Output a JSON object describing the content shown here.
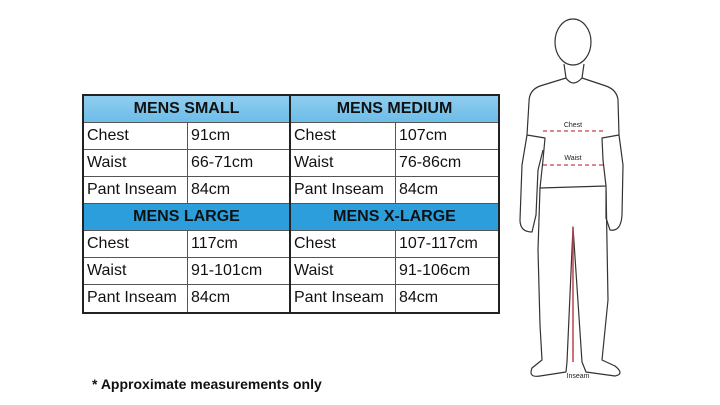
{
  "tables": [
    {
      "title": "MENS SMALL",
      "style": "light",
      "rows": [
        [
          "Chest",
          "91cm"
        ],
        [
          "Waist",
          "66-71cm"
        ],
        [
          "Pant Inseam",
          "84cm"
        ]
      ]
    },
    {
      "title": "MENS MEDIUM",
      "style": "light",
      "rows": [
        [
          "Chest",
          "107cm"
        ],
        [
          "Waist",
          "76-86cm"
        ],
        [
          "Pant Inseam",
          "84cm"
        ]
      ]
    },
    {
      "title": "MENS LARGE",
      "style": "dark",
      "rows": [
        [
          "Chest",
          "117cm"
        ],
        [
          "Waist",
          "91-101cm"
        ],
        [
          "Pant Inseam",
          "84cm"
        ]
      ]
    },
    {
      "title": "MENS X-LARGE",
      "style": "dark",
      "rows": [
        [
          "Chest",
          "107-117cm"
        ],
        [
          "Waist",
          "91-106cm"
        ],
        [
          "Pant Inseam",
          "84cm"
        ]
      ]
    }
  ],
  "note": "* Approximate measurements only",
  "figure": {
    "chest_label": "Chest",
    "waist_label": "Waist",
    "inseam_label": "Inseam"
  },
  "colors": {
    "header_light": "#8fcdef",
    "header_dark": "#2b9edb",
    "measure_line": "#c0404a"
  }
}
